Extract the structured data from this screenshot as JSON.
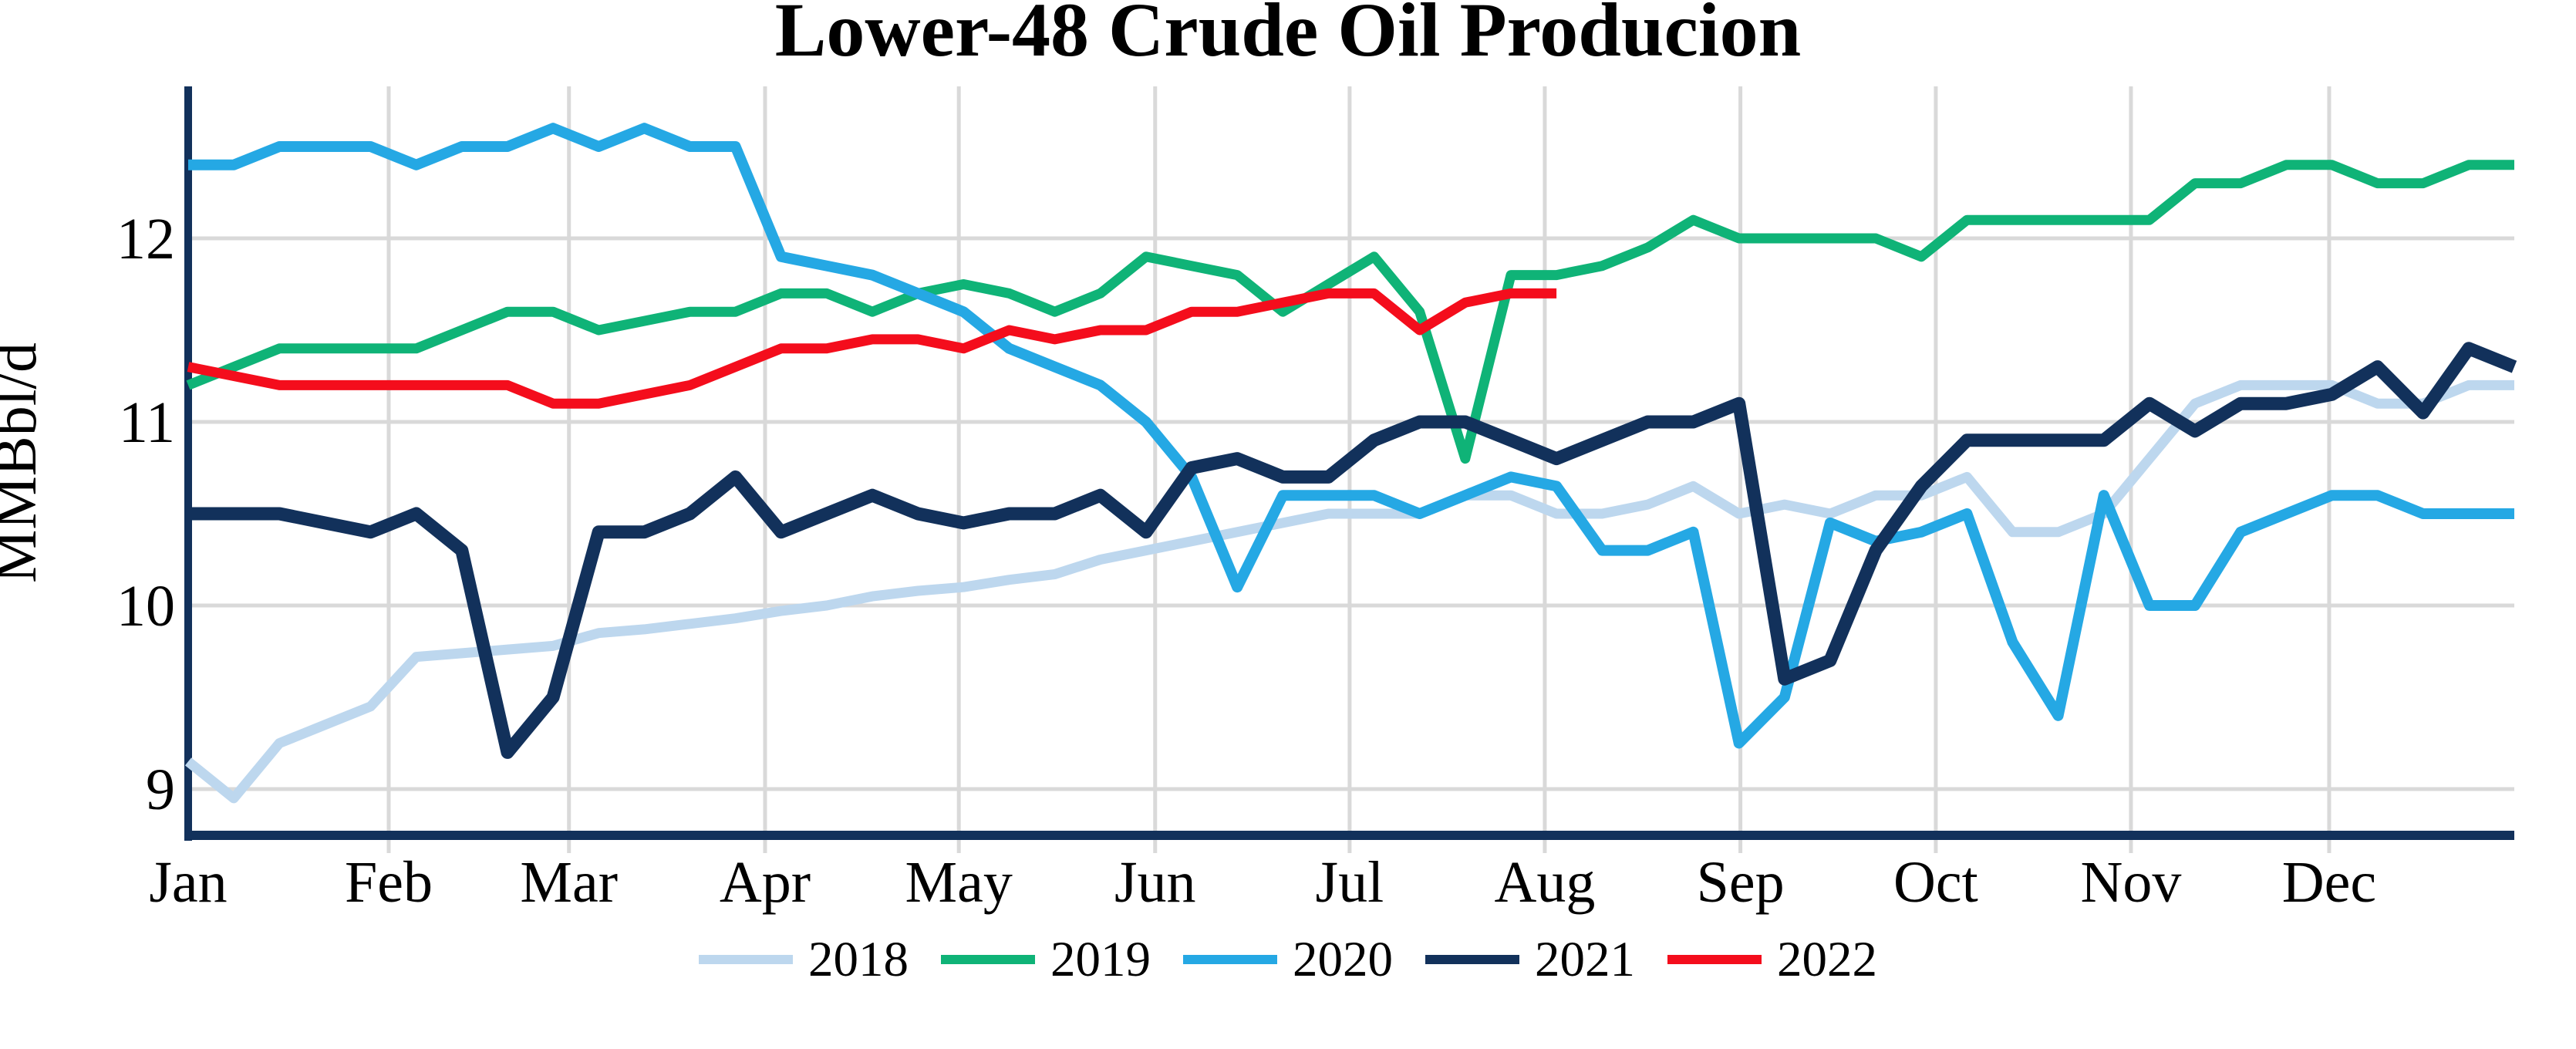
{
  "title": "Lower-48 Crude Oil Producion",
  "y_axis_label": "MMBbl/d",
  "chart_data": {
    "type": "line",
    "title": "Lower-48 Crude Oil Producion",
    "xlabel": "",
    "ylabel": "MMBbl/d",
    "x_unit": "week of year",
    "x_tick_labels": [
      "Jan",
      "Feb",
      "Mar",
      "Apr",
      "May",
      "Jun",
      "Jul",
      "Aug",
      "Sep",
      "Oct",
      "Nov",
      "Dec"
    ],
    "y_ticks": [
      12,
      11,
      10,
      9
    ],
    "ylim": [
      8.7,
      12.85
    ],
    "grid": true,
    "legend_position": "bottom",
    "background_color": "#FFFFFF",
    "gridline_color": "#D9D9D9",
    "axis_color": "#12315B",
    "series": [
      {
        "name": "2018",
        "color": "#BDD7EE",
        "values": [
          9.15,
          8.95,
          9.25,
          9.35,
          9.45,
          9.72,
          9.74,
          9.76,
          9.78,
          9.85,
          9.87,
          9.9,
          9.93,
          9.97,
          10.0,
          10.05,
          10.08,
          10.1,
          10.14,
          10.17,
          10.25,
          10.3,
          10.35,
          10.4,
          10.45,
          10.5,
          10.5,
          10.5,
          10.6,
          10.6,
          10.5,
          10.5,
          10.55,
          10.65,
          10.5,
          10.55,
          10.5,
          10.6,
          10.6,
          10.7,
          10.4,
          10.4,
          10.5,
          10.8,
          11.1,
          11.2,
          11.2,
          11.2,
          11.1,
          11.1,
          11.2,
          11.2
        ]
      },
      {
        "name": "2019",
        "color": "#0FB377",
        "values": [
          11.2,
          11.3,
          11.4,
          11.4,
          11.4,
          11.4,
          11.5,
          11.6,
          11.6,
          11.5,
          11.55,
          11.6,
          11.6,
          11.7,
          11.7,
          11.6,
          11.7,
          11.75,
          11.7,
          11.6,
          11.7,
          11.9,
          11.85,
          11.8,
          11.6,
          11.75,
          11.9,
          11.6,
          10.8,
          11.8,
          11.8,
          11.85,
          11.95,
          12.1,
          12.0,
          12.0,
          12.0,
          12.0,
          11.9,
          12.1,
          12.1,
          12.1,
          12.1,
          12.1,
          12.3,
          12.3,
          12.4,
          12.4,
          12.3,
          12.3,
          12.4,
          12.4
        ]
      },
      {
        "name": "2020",
        "color": "#25A8E4",
        "values": [
          12.4,
          12.4,
          12.5,
          12.5,
          12.5,
          12.4,
          12.5,
          12.5,
          12.6,
          12.5,
          12.6,
          12.5,
          12.5,
          11.9,
          11.85,
          11.8,
          11.7,
          11.6,
          11.4,
          11.3,
          11.2,
          11.0,
          10.7,
          10.1,
          10.6,
          10.6,
          10.6,
          10.5,
          10.6,
          10.7,
          10.65,
          10.3,
          10.3,
          10.4,
          9.25,
          9.5,
          10.45,
          10.35,
          10.4,
          10.5,
          9.8,
          9.4,
          10.6,
          10.0,
          10.0,
          10.4,
          10.5,
          10.6,
          10.6,
          10.5,
          10.5,
          10.5
        ]
      },
      {
        "name": "2021",
        "color": "#12315B",
        "values": [
          10.5,
          10.5,
          10.5,
          10.45,
          10.4,
          10.5,
          10.3,
          9.2,
          9.5,
          10.4,
          10.4,
          10.5,
          10.7,
          10.4,
          10.5,
          10.6,
          10.5,
          10.45,
          10.5,
          10.5,
          10.6,
          10.4,
          10.75,
          10.8,
          10.7,
          10.7,
          10.9,
          11.0,
          11.0,
          10.9,
          10.8,
          10.9,
          11.0,
          11.0,
          11.1,
          9.6,
          9.7,
          10.3,
          10.65,
          10.9,
          10.9,
          10.9,
          10.9,
          11.1,
          10.95,
          11.1,
          11.1,
          11.15,
          11.3,
          11.05,
          11.4,
          11.3
        ]
      },
      {
        "name": "2022",
        "color": "#F40D1C",
        "values": [
          11.3,
          11.25,
          11.2,
          11.2,
          11.2,
          11.2,
          11.2,
          11.2,
          11.1,
          11.1,
          11.15,
          11.2,
          11.3,
          11.4,
          11.4,
          11.45,
          11.45,
          11.4,
          11.5,
          11.45,
          11.5,
          11.5,
          11.6,
          11.6,
          11.65,
          11.7,
          11.7,
          11.5,
          11.65,
          11.7,
          11.7
        ]
      }
    ]
  }
}
